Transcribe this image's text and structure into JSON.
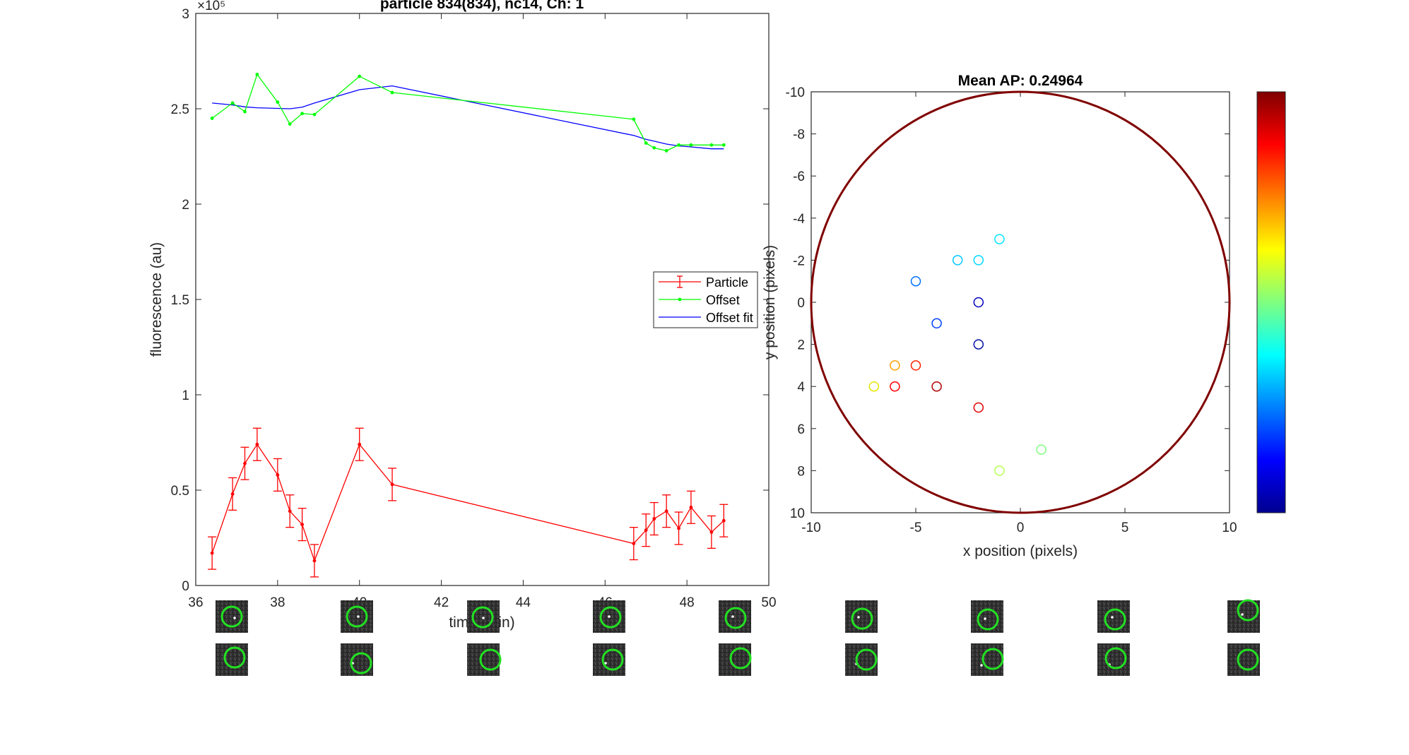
{
  "chart_data": [
    {
      "type": "line",
      "title": "particle 834(834), nc14, Ch: 1",
      "xlabel": "time (min)",
      "ylabel": "fluorescence (au)",
      "y_exponent_label": "×10⁵",
      "xlim": [
        36,
        50
      ],
      "ylim": [
        0,
        300000
      ],
      "x_ticks": [
        36,
        38,
        40,
        42,
        44,
        46,
        48,
        50
      ],
      "x_tick_labels": [
        "36",
        "38",
        "40",
        "42",
        "44",
        "46",
        "48",
        "50"
      ],
      "y_ticks": [
        0,
        50000,
        100000,
        150000,
        200000,
        250000,
        300000
      ],
      "y_tick_labels": [
        "0",
        "0.5",
        "1",
        "1.5",
        "2",
        "2.5",
        "3"
      ],
      "legend_position": "right",
      "series": [
        {
          "name": "Particle",
          "color": "#ff0000",
          "marker": "errorbar",
          "x": [
            36.4,
            36.9,
            37.2,
            37.5,
            38.0,
            38.3,
            38.6,
            38.9,
            40.0,
            40.8,
            46.7,
            47.0,
            47.2,
            47.5,
            47.8,
            48.1,
            48.6,
            48.9
          ],
          "y": [
            17000,
            48000,
            64000,
            74000,
            58000,
            39000,
            32000,
            13000,
            74000,
            53000,
            22000,
            29000,
            35000,
            39000,
            30000,
            41000,
            28000,
            34000
          ],
          "err": [
            8500,
            8500,
            8500,
            8500,
            8500,
            8500,
            8500,
            8500,
            8500,
            8500,
            8500,
            8500,
            8500,
            8500,
            8500,
            8500,
            8500,
            8500
          ]
        },
        {
          "name": "Offset",
          "color": "#00ff00",
          "marker": "dot",
          "x": [
            36.4,
            36.9,
            37.2,
            37.5,
            38.0,
            38.3,
            38.6,
            38.9,
            40.0,
            40.8,
            46.7,
            47.0,
            47.2,
            47.5,
            47.8,
            48.1,
            48.6,
            48.9
          ],
          "y": [
            245000,
            253000,
            248500,
            268000,
            253500,
            242000,
            247500,
            247000,
            267000,
            258500,
            244500,
            232000,
            229500,
            228000,
            231000,
            231000,
            231000,
            231000
          ]
        },
        {
          "name": "Offset fit",
          "color": "#0000ff",
          "marker": "none",
          "x": [
            36.4,
            36.9,
            37.2,
            37.5,
            38.0,
            38.3,
            38.6,
            38.9,
            40.0,
            40.8,
            46.7,
            47.0,
            47.2,
            47.5,
            47.8,
            48.1,
            48.6,
            48.9
          ],
          "y": [
            253000,
            252000,
            251000,
            250500,
            250200,
            250000,
            250800,
            253000,
            260000,
            262000,
            236000,
            234000,
            233000,
            231500,
            230500,
            230000,
            229000,
            229000
          ]
        }
      ]
    },
    {
      "type": "scatter",
      "title": "Mean AP: 0.24964",
      "xlabel": "x position (pixels)",
      "ylabel": "y position (pixels)",
      "xlim": [
        -10,
        10
      ],
      "ylim": [
        -10,
        10
      ],
      "y_reversed": true,
      "x_ticks": [
        -10,
        -5,
        0,
        5,
        10
      ],
      "x_tick_labels": [
        "-10",
        "-5",
        "0",
        "5",
        "10"
      ],
      "y_ticks": [
        -10,
        -8,
        -6,
        -4,
        -2,
        0,
        2,
        4,
        6,
        8,
        10
      ],
      "y_tick_labels": [
        "-10",
        "-8",
        "-6",
        "-4",
        "-2",
        "0",
        "2",
        "4",
        "6",
        "8",
        "10"
      ],
      "circle_color": "#800000",
      "colorbar": "jet",
      "points": [
        {
          "x": -1,
          "y": -3,
          "color": "#00e6ff"
        },
        {
          "x": -3,
          "y": -2,
          "color": "#00c8ff"
        },
        {
          "x": -2,
          "y": -2,
          "color": "#00d8ff"
        },
        {
          "x": -5,
          "y": -1,
          "color": "#0070ff"
        },
        {
          "x": -2,
          "y": 0,
          "color": "#0000c0"
        },
        {
          "x": -4,
          "y": 1,
          "color": "#0040ff"
        },
        {
          "x": -2,
          "y": 2,
          "color": "#0010a8"
        },
        {
          "x": -6,
          "y": 3,
          "color": "#ffa000"
        },
        {
          "x": -5,
          "y": 3,
          "color": "#ff2000"
        },
        {
          "x": -7,
          "y": 4,
          "color": "#e6e600"
        },
        {
          "x": -6,
          "y": 4,
          "color": "#ff0000"
        },
        {
          "x": -4,
          "y": 4,
          "color": "#b00000"
        },
        {
          "x": -2,
          "y": 5,
          "color": "#e00000"
        },
        {
          "x": 1,
          "y": 7,
          "color": "#80ff80"
        },
        {
          "x": -1,
          "y": 8,
          "color": "#b8ff50"
        }
      ]
    }
  ]
}
